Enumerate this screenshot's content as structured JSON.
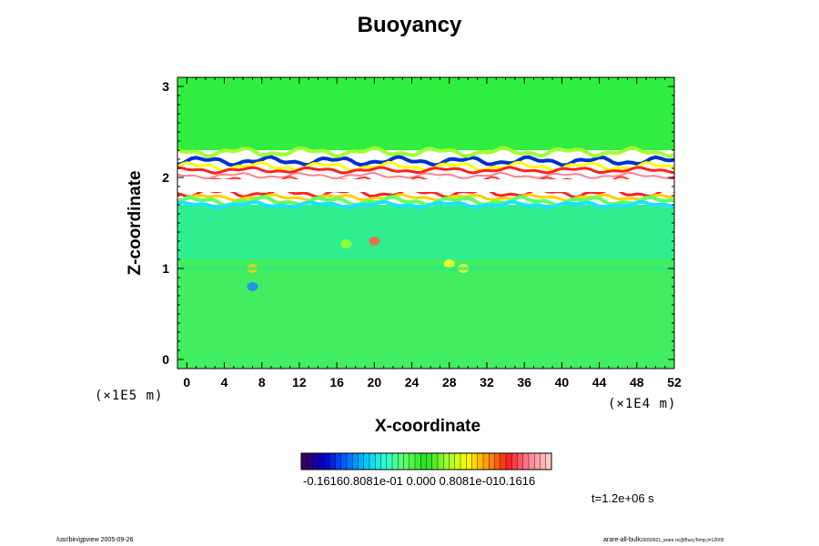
{
  "chart_data": {
    "type": "heatmap",
    "title": "Buoyancy",
    "xlabel": "X-coordinate",
    "ylabel": "Z-coordinate",
    "x_unit": "(×1E4 m)",
    "y_unit": "(×1E5 m)",
    "x_ticks": [
      "0",
      "4",
      "8",
      "12",
      "16",
      "20",
      "24",
      "28",
      "32",
      "36",
      "40",
      "44",
      "48",
      "52"
    ],
    "y_ticks": [
      "0",
      "1",
      "2",
      "3"
    ],
    "xlim": [
      -1,
      52
    ],
    "ylim": [
      -0.1,
      3.1
    ],
    "colorbar": {
      "labels_text": "-0.16160.8081e-01 0.000 0.8081e-010.1616",
      "range": [
        -0.1616,
        0.1616
      ],
      "colors": [
        "#3a0060",
        "#0000c8",
        "#0060ff",
        "#00c8ff",
        "#30ffd0",
        "#60ff60",
        "#20e020",
        "#a0ff30",
        "#ffff00",
        "#ff9a00",
        "#ff2020",
        "#ff8090",
        "#ffc8c8"
      ]
    },
    "field_description_bands": [
      {
        "z": [
          -0.1,
          1.1
        ],
        "color": "#40ee60"
      },
      {
        "z": [
          1.1,
          1.7
        ],
        "color": "#30ee90"
      },
      {
        "z": [
          1.7,
          2.3
        ],
        "color": "#ffffff"
      },
      {
        "z": [
          2.3,
          3.1
        ],
        "color": "#30ee40"
      }
    ]
  },
  "annotations": {
    "time": "t=1.2e+06 s"
  },
  "footer": {
    "left": "/usr/bin/gpview 2005-09-26",
    "right_main": "arare-all-bulk",
    "right_sub": "20050921_arare.nc@BuoyTemp,t=12000"
  }
}
